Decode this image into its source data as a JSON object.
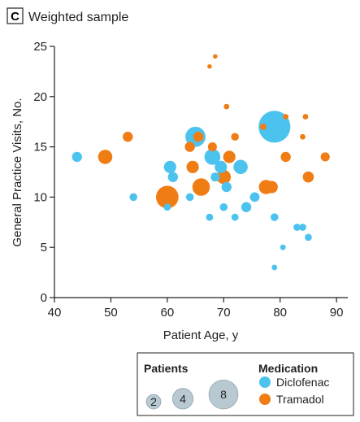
{
  "chart_data": {
    "type": "scatter",
    "panel_label": "C",
    "title": "Weighted sample",
    "xlabel": "Patient Age, y",
    "ylabel": "General Practice Visits, No.",
    "xlim": [
      40,
      92
    ],
    "ylim": [
      0,
      25
    ],
    "xticks": [
      40,
      50,
      60,
      70,
      80,
      90
    ],
    "yticks": [
      0,
      5,
      10,
      15,
      20,
      25
    ],
    "grid": false,
    "size_legend": {
      "title": "Patients",
      "entries": [
        2,
        4,
        8
      ]
    },
    "color_legend": {
      "title": "Medication",
      "placement": "bottom-right"
    },
    "series": [
      {
        "name": "Diclofenac",
        "color": "#4cc3ee",
        "points": [
          {
            "x": 44,
            "y": 14,
            "patients": 1
          },
          {
            "x": 54,
            "y": 10,
            "patients": 0.6
          },
          {
            "x": 60,
            "y": 9,
            "patients": 0.5
          },
          {
            "x": 60.5,
            "y": 13,
            "patients": 1.5
          },
          {
            "x": 61,
            "y": 12,
            "patients": 1
          },
          {
            "x": 64,
            "y": 10,
            "patients": 0.6
          },
          {
            "x": 65,
            "y": 16,
            "patients": 4
          },
          {
            "x": 67.5,
            "y": 8,
            "patients": 0.5
          },
          {
            "x": 68,
            "y": 14,
            "patients": 2.5
          },
          {
            "x": 68.5,
            "y": 12,
            "patients": 0.8
          },
          {
            "x": 69.5,
            "y": 13,
            "patients": 1.5
          },
          {
            "x": 70,
            "y": 9,
            "patients": 0.6
          },
          {
            "x": 70.5,
            "y": 11,
            "patients": 1
          },
          {
            "x": 72,
            "y": 8,
            "patients": 0.5
          },
          {
            "x": 73,
            "y": 13,
            "patients": 2
          },
          {
            "x": 74,
            "y": 9,
            "patients": 1
          },
          {
            "x": 75.5,
            "y": 10,
            "patients": 0.9
          },
          {
            "x": 79,
            "y": 17,
            "patients": 10
          },
          {
            "x": 79,
            "y": 8,
            "patients": 0.6
          },
          {
            "x": 79,
            "y": 3,
            "patients": 0.3
          },
          {
            "x": 80.5,
            "y": 5,
            "patients": 0.3
          },
          {
            "x": 83,
            "y": 7,
            "patients": 0.5
          },
          {
            "x": 84,
            "y": 7,
            "patients": 0.5
          },
          {
            "x": 85,
            "y": 6,
            "patients": 0.5
          }
        ]
      },
      {
        "name": "Tramadol",
        "color": "#f07c14",
        "points": [
          {
            "x": 49,
            "y": 14,
            "patients": 2
          },
          {
            "x": 53,
            "y": 16,
            "patients": 1
          },
          {
            "x": 60,
            "y": 10,
            "patients": 5
          },
          {
            "x": 64,
            "y": 15,
            "patients": 1
          },
          {
            "x": 64.5,
            "y": 13,
            "patients": 1.5
          },
          {
            "x": 65.5,
            "y": 16,
            "patients": 1
          },
          {
            "x": 66,
            "y": 11,
            "patients": 3
          },
          {
            "x": 67.5,
            "y": 23,
            "patients": 0.2
          },
          {
            "x": 68,
            "y": 15,
            "patients": 0.8
          },
          {
            "x": 68.5,
            "y": 24,
            "patients": 0.2
          },
          {
            "x": 70,
            "y": 12,
            "patients": 2
          },
          {
            "x": 70.5,
            "y": 19,
            "patients": 0.3
          },
          {
            "x": 71,
            "y": 14,
            "patients": 1.5
          },
          {
            "x": 72,
            "y": 16,
            "patients": 0.6
          },
          {
            "x": 77,
            "y": 17,
            "patients": 0.4
          },
          {
            "x": 77.5,
            "y": 11,
            "patients": 2
          },
          {
            "x": 78.5,
            "y": 11,
            "patients": 1.5
          },
          {
            "x": 81,
            "y": 18,
            "patients": 0.3
          },
          {
            "x": 81,
            "y": 14,
            "patients": 1
          },
          {
            "x": 84,
            "y": 16,
            "patients": 0.3
          },
          {
            "x": 84.5,
            "y": 18,
            "patients": 0.3
          },
          {
            "x": 85,
            "y": 12,
            "patients": 1.2
          },
          {
            "x": 88,
            "y": 14,
            "patients": 0.8
          }
        ]
      }
    ]
  }
}
